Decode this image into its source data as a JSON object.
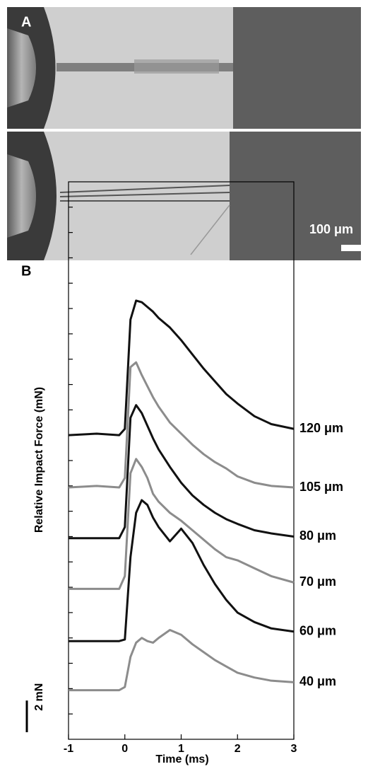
{
  "images": {
    "label": "A",
    "scale_bar_label": "100 μm"
  },
  "chart_data": {
    "type": "line",
    "panel_label": "B",
    "xlabel": "Time (ms)",
    "ylabel": "Relative Impact Force (mN)",
    "x": [
      -1,
      -0.5,
      -0.1,
      0,
      0.1,
      0.2,
      0.3,
      0.4,
      0.5,
      0.6,
      0.8,
      1.0,
      1.2,
      1.4,
      1.6,
      1.8,
      2.0,
      2.3,
      2.6,
      3.0
    ],
    "xlim": [
      -1,
      3
    ],
    "xticks": [
      -1,
      0,
      1,
      2,
      3
    ],
    "ylim": [
      0,
      35.2
    ],
    "yticks": [
      1.6,
      3.2,
      4.8,
      6.4,
      8,
      9.6,
      11.2,
      12.8,
      14.4,
      16,
      17.6,
      19.2,
      20.8,
      22.4,
      24,
      25.6,
      27.2,
      28.8,
      30.4,
      32,
      33.6
    ],
    "scale_bar": {
      "value": 2,
      "label": "2 mN"
    },
    "series": [
      {
        "name": "120 μm",
        "color": "#111111",
        "values": [
          19.2,
          19.3,
          19.2,
          19.6,
          26.5,
          27.7,
          27.6,
          27.3,
          27.0,
          26.6,
          26.0,
          25.2,
          24.3,
          23.4,
          22.6,
          21.8,
          21.2,
          20.4,
          19.9,
          19.6
        ]
      },
      {
        "name": "105 μm",
        "color": "#8c8c8c",
        "values": [
          15.9,
          16.0,
          15.9,
          16.5,
          23.5,
          23.8,
          23.0,
          22.3,
          21.6,
          21.0,
          20.0,
          19.3,
          18.6,
          18.0,
          17.5,
          17.1,
          16.6,
          16.2,
          16.0,
          15.9
        ]
      },
      {
        "name": "80 μm",
        "color": "#111111",
        "values": [
          12.7,
          12.7,
          12.7,
          13.4,
          20.3,
          21.1,
          20.6,
          19.8,
          19.0,
          18.3,
          17.2,
          16.2,
          15.4,
          14.8,
          14.3,
          13.9,
          13.6,
          13.2,
          13.0,
          12.8
        ]
      },
      {
        "name": "70 μm",
        "color": "#8c8c8c",
        "values": [
          9.5,
          9.5,
          9.5,
          10.3,
          16.8,
          17.7,
          17.2,
          16.5,
          15.5,
          15.0,
          14.3,
          13.8,
          13.2,
          12.6,
          12.0,
          11.5,
          11.3,
          10.8,
          10.3,
          9.9
        ]
      },
      {
        "name": "60 μm",
        "color": "#111111",
        "values": [
          6.2,
          6.2,
          6.2,
          6.3,
          11.5,
          14.3,
          15.1,
          14.8,
          14.0,
          13.4,
          12.5,
          13.3,
          12.4,
          11.0,
          9.8,
          8.8,
          8.0,
          7.4,
          7.0,
          6.8
        ]
      },
      {
        "name": "40 μm",
        "color": "#8c8c8c",
        "values": [
          3.1,
          3.1,
          3.1,
          3.3,
          5.2,
          6.1,
          6.4,
          6.2,
          6.1,
          6.4,
          6.9,
          6.6,
          6.0,
          5.5,
          5.0,
          4.6,
          4.2,
          3.9,
          3.7,
          3.6
        ]
      }
    ]
  }
}
